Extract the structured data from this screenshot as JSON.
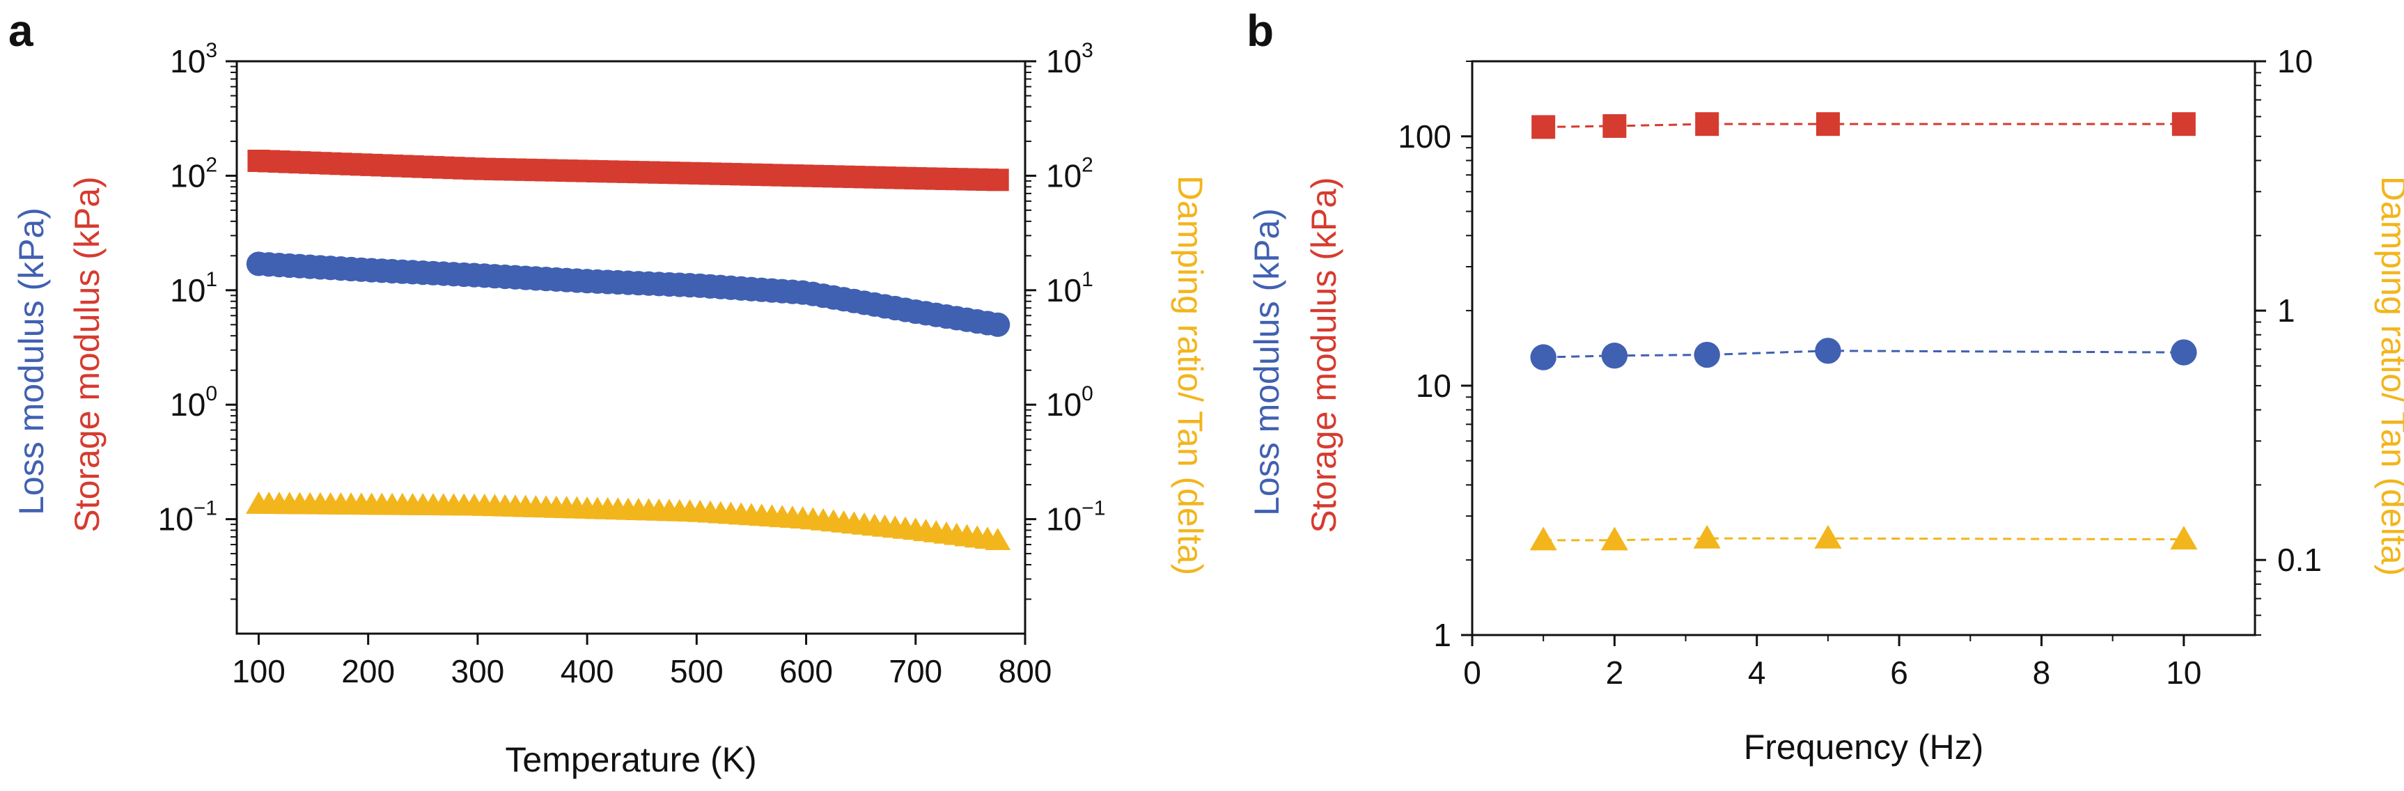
{
  "colors": {
    "storage": "#d63b2f",
    "loss": "#4060b2",
    "damping": "#f2b51c",
    "axis": "#111111"
  },
  "chart_data": [
    {
      "panel": "a",
      "type": "scatter",
      "title": "",
      "xlabel": "Temperature (K)",
      "xlim": [
        80,
        800
      ],
      "xticks": [
        100,
        200,
        300,
        400,
        500,
        600,
        700,
        800
      ],
      "ylim_log": [
        0.01,
        1000
      ],
      "yticks": [
        {
          "base": "10",
          "exp": "−1",
          "value": 0.1
        },
        {
          "base": "10",
          "exp": "0",
          "value": 1
        },
        {
          "base": "10",
          "exp": "1",
          "value": 10
        },
        {
          "base": "10",
          "exp": "2",
          "value": 100
        },
        {
          "base": "10",
          "exp": "3",
          "value": 1000
        }
      ],
      "ylabel_left": {
        "loss": "Loss modulus (kPa)",
        "storage": "Storage modulus (kPa)"
      },
      "ylabel_right": "Damping ratio/ Tan (delta)",
      "series": [
        {
          "name": "Storage modulus",
          "color_key": "storage",
          "marker": "square",
          "x": [
            100,
            300,
            500,
            700,
            775
          ],
          "y": [
            135,
            115,
            105,
            95,
            92
          ]
        },
        {
          "name": "Loss modulus",
          "color_key": "loss",
          "marker": "circle",
          "x": [
            100,
            200,
            300,
            400,
            500,
            600,
            700,
            775
          ],
          "y": [
            17,
            15,
            13.5,
            12,
            11,
            9.5,
            6.5,
            5
          ]
        },
        {
          "name": "Damping ratio",
          "color_key": "damping",
          "marker": "triangle",
          "x": [
            100,
            300,
            500,
            600,
            700,
            775
          ],
          "y": [
            0.135,
            0.13,
            0.115,
            0.1,
            0.08,
            0.065
          ]
        }
      ]
    },
    {
      "panel": "b",
      "type": "scatter",
      "title": "",
      "xlabel": "Frequency (Hz)",
      "xlim": [
        0,
        11
      ],
      "xticks": [
        0,
        2,
        4,
        6,
        8,
        10
      ],
      "ylim_log_left": [
        1,
        200
      ],
      "yticks_left": [
        "1",
        "10",
        "100"
      ],
      "ylim_log_right": [
        0.05,
        10
      ],
      "yticks_right": [
        "0.1",
        "1",
        "10"
      ],
      "ylabel_left": {
        "loss": "Loss modulus (kPa)",
        "storage": "Storage modulus (kPa)"
      },
      "ylabel_right": "Damping ratio/ Tan (delta)",
      "series": [
        {
          "name": "Storage modulus",
          "color_key": "storage",
          "marker": "square",
          "axis": "left",
          "x": [
            1,
            2,
            3.3,
            5,
            10
          ],
          "y": [
            109,
            110,
            112,
            112,
            112
          ]
        },
        {
          "name": "Loss modulus",
          "color_key": "loss",
          "marker": "circle",
          "axis": "left",
          "x": [
            1,
            2,
            3.3,
            5,
            10
          ],
          "y": [
            13,
            13.2,
            13.3,
            13.8,
            13.6
          ]
        },
        {
          "name": "Damping ratio",
          "color_key": "damping",
          "marker": "triangle",
          "axis": "right",
          "x": [
            1,
            2,
            3.3,
            5,
            10
          ],
          "y": [
            0.12,
            0.12,
            0.122,
            0.122,
            0.121
          ]
        }
      ]
    }
  ]
}
